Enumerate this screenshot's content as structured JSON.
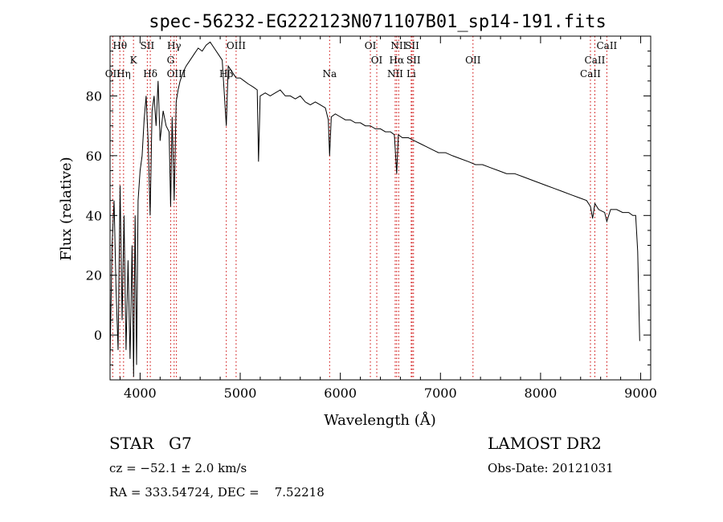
{
  "chart_data": {
    "type": "line",
    "title": "spec-56232-EG222123N071107B01_sp14-191.fits",
    "xlabel": "Wavelength (Å)",
    "ylabel": "Flux (relative)",
    "xlim": [
      3700,
      9100
    ],
    "ylim": [
      -15,
      100
    ],
    "xticks": [
      "4000",
      "5000",
      "6000",
      "7000",
      "8000",
      "9000"
    ],
    "yticks": [
      "0",
      "20",
      "40",
      "60",
      "80"
    ],
    "grid": false,
    "line_color": "#000000",
    "marker_color": "#cc0000",
    "spectral_lines": [
      {
        "label": "Hθ",
        "x": 3798,
        "row": 1
      },
      {
        "label": "OII",
        "x": 3727,
        "row": 3
      },
      {
        "label": "Hη",
        "x": 3835,
        "row": 3
      },
      {
        "label": "K",
        "x": 3934,
        "row": 2
      },
      {
        "label": "SII",
        "x": 4072,
        "row": 1
      },
      {
        "label": "Hδ",
        "x": 4102,
        "row": 3
      },
      {
        "label": "Hγ",
        "x": 4340,
        "row": 1
      },
      {
        "label": "G",
        "x": 4305,
        "row": 2
      },
      {
        "label": "OIII",
        "x": 4363,
        "row": 3
      },
      {
        "label": "OIII",
        "x": 4959,
        "row": 1
      },
      {
        "label": "Hβ",
        "x": 4861,
        "row": 3
      },
      {
        "label": "Na",
        "x": 5893,
        "row": 3
      },
      {
        "label": "OI",
        "x": 6300,
        "row": 1
      },
      {
        "label": "OI",
        "x": 6364,
        "row": 2
      },
      {
        "label": "NII",
        "x": 6548,
        "row": 3
      },
      {
        "label": "Hα",
        "x": 6563,
        "row": 2
      },
      {
        "label": "NII",
        "x": 6583,
        "row": 1
      },
      {
        "label": "SII",
        "x": 6717,
        "row": 1
      },
      {
        "label": "SII",
        "x": 6731,
        "row": 2
      },
      {
        "label": "Li",
        "x": 6708,
        "row": 3
      },
      {
        "label": "OII",
        "x": 7325,
        "row": 2
      },
      {
        "label": "CaII",
        "x": 8498,
        "row": 3
      },
      {
        "label": "CaII",
        "x": 8542,
        "row": 2
      },
      {
        "label": "CaII",
        "x": 8662,
        "row": 1
      }
    ],
    "series": [
      {
        "x": [
          3700,
          3720,
          3740,
          3760,
          3780,
          3800,
          3820,
          3840,
          3860,
          3880,
          3900,
          3920,
          3935,
          3950,
          3965,
          3980,
          4000,
          4020,
          4040,
          4060,
          4080,
          4100,
          4120,
          4140,
          4160,
          4180,
          4200,
          4230,
          4260,
          4290,
          4305,
          4320,
          4340,
          4360,
          4380,
          4400,
          4430,
          4460,
          4500,
          4540,
          4580,
          4620,
          4660,
          4700,
          4740,
          4780,
          4820,
          4861,
          4880,
          4920,
          4960,
          5000,
          5040,
          5080,
          5130,
          5170,
          5183,
          5200,
          5250,
          5300,
          5350,
          5400,
          5450,
          5500,
          5550,
          5600,
          5650,
          5700,
          5750,
          5800,
          5850,
          5880,
          5893,
          5910,
          5950,
          6000,
          6050,
          6100,
          6150,
          6200,
          6250,
          6300,
          6350,
          6400,
          6450,
          6500,
          6540,
          6563,
          6580,
          6620,
          6680,
          6740,
          6800,
          6860,
          6920,
          6980,
          7050,
          7120,
          7200,
          7280,
          7350,
          7420,
          7500,
          7580,
          7660,
          7740,
          7820,
          7900,
          7980,
          8060,
          8140,
          8220,
          8300,
          8380,
          8460,
          8498,
          8520,
          8542,
          8580,
          8640,
          8662,
          8700,
          8760,
          8820,
          8880,
          8920,
          8950,
          8970,
          8990
        ],
        "y": [
          -8,
          30,
          45,
          15,
          -5,
          50,
          5,
          40,
          -5,
          25,
          -8,
          30,
          -14,
          40,
          -10,
          45,
          55,
          60,
          72,
          80,
          65,
          40,
          75,
          80,
          70,
          85,
          65,
          75,
          70,
          68,
          43,
          73,
          45,
          78,
          82,
          85,
          88,
          90,
          92,
          94,
          96,
          95,
          97,
          98,
          96,
          94,
          92,
          70,
          90,
          88,
          86,
          86,
          85,
          84,
          83,
          82,
          58,
          80,
          81,
          80,
          81,
          82,
          80,
          80,
          79,
          80,
          78,
          77,
          78,
          77,
          76,
          72,
          60,
          73,
          74,
          73,
          72,
          72,
          71,
          71,
          70,
          70,
          69,
          69,
          68,
          68,
          67,
          54,
          67,
          66,
          66,
          65,
          64,
          63,
          62,
          61,
          61,
          60,
          59,
          58,
          57,
          57,
          56,
          55,
          54,
          54,
          53,
          52,
          51,
          50,
          49,
          48,
          47,
          46,
          45,
          43,
          39,
          44,
          42,
          41,
          38,
          42,
          42,
          41,
          41,
          40,
          40,
          28,
          -2
        ]
      }
    ]
  },
  "info": {
    "obj_type": "STAR",
    "subclass": "G7",
    "survey": "LAMOST DR2",
    "cz": "cz = −52.1 ± 2.0 km/s",
    "obs_date": "Obs-Date: 20121031",
    "radec": "RA = 333.54724, DEC =    7.52218"
  }
}
